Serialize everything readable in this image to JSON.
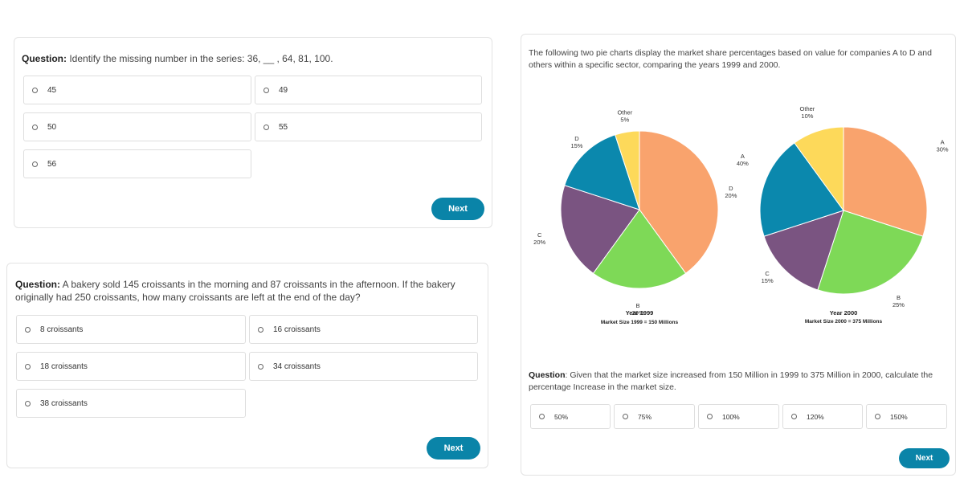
{
  "q1": {
    "label": "Question:",
    "text": " Identify the missing number in the series: 36, __ , 64, 81, 100.",
    "options": [
      "45",
      "49",
      "50",
      "55",
      "56"
    ],
    "next_label": "Next"
  },
  "q2": {
    "label": "Question:",
    "text": " A bakery sold 145 croissants in the morning and 87 croissants in the afternoon. If the bakery originally had 250 croissants, how many croissants are left at the end of the day?",
    "options": [
      "8 croissants",
      "16 croissants",
      "18 croissants",
      "34 croissants",
      "38 croissants"
    ],
    "next_label": "Next"
  },
  "q3": {
    "intro": "The following two pie charts display the market share percentages based on value for companies A to D and others within a specific sector, comparing the years 1999 and 2000.",
    "label": "Question",
    "text": ": Given that the market size increased from 150 Million in 1999 to 375 Million in 2000, calculate the percentage Increase in the market size.",
    "options": [
      "50%",
      "75%",
      "100%",
      "120%",
      "150%"
    ],
    "next_label": "Next"
  },
  "chart_data": [
    {
      "type": "pie",
      "title": "Year 1999",
      "subtitle": "Market Size 1999 = 150 Millions",
      "categories": [
        "A",
        "B",
        "C",
        "D",
        "Other"
      ],
      "values": [
        40,
        20,
        20,
        15,
        5
      ],
      "value_labels": [
        "40%",
        "20%",
        "20%",
        "15%",
        "5%"
      ],
      "colors": [
        "#f9a36d",
        "#7ed957",
        "#7a5481",
        "#0b88ad",
        "#fdd95a"
      ]
    },
    {
      "type": "pie",
      "title": "Year 2000",
      "subtitle": "Market Size 2000 = 375 Millions",
      "categories": [
        "A",
        "B",
        "C",
        "D",
        "Other"
      ],
      "values": [
        30,
        25,
        15,
        20,
        10
      ],
      "value_labels": [
        "30%",
        "25%",
        "15%",
        "20%",
        "10%"
      ],
      "colors": [
        "#f9a36d",
        "#7ed957",
        "#7a5481",
        "#0b88ad",
        "#fdd95a"
      ]
    }
  ]
}
